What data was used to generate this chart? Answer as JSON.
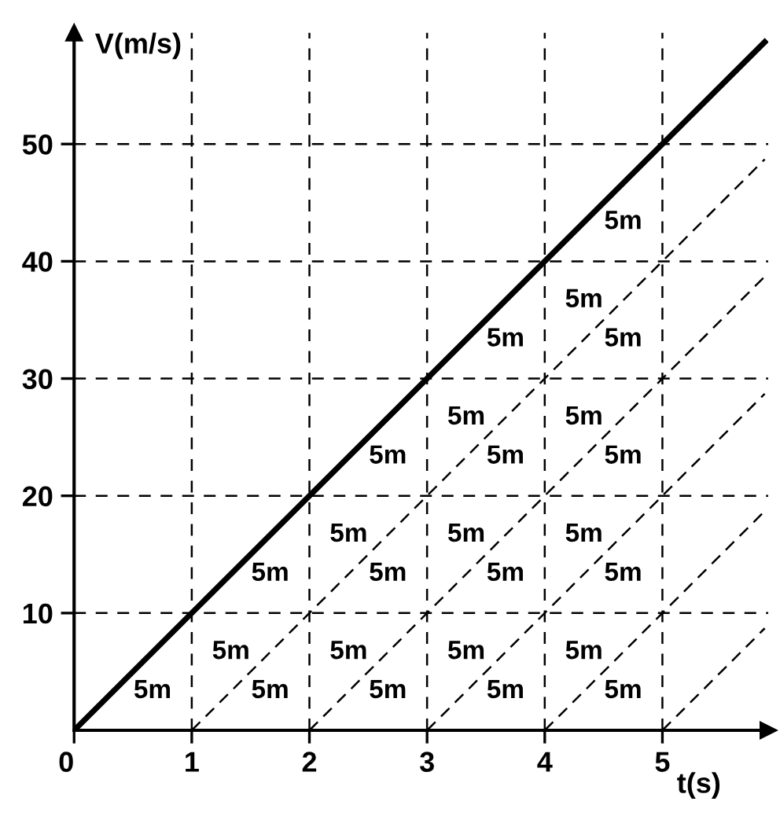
{
  "chart_data": {
    "type": "line",
    "xlabel": "t(s)",
    "ylabel": "V(m/s)",
    "xlim": [
      0,
      5.9
    ],
    "ylim": [
      0,
      59.5
    ],
    "xticks": [
      0,
      1,
      2,
      3,
      4,
      5
    ],
    "yticks": [
      10,
      20,
      30,
      40,
      50
    ],
    "grid": true,
    "marker": "none",
    "legend": false,
    "series": [
      {
        "x": [
          0,
          5.87
        ],
        "values": [
          0,
          58.7
        ],
        "color": "#000000",
        "line_style": "solid"
      },
      {
        "x": [
          1,
          5.87
        ],
        "values": [
          0,
          48.7
        ],
        "color": "#000000",
        "line_style": "dashed"
      },
      {
        "x": [
          2,
          5.87
        ],
        "values": [
          0,
          38.7
        ],
        "color": "#000000",
        "line_style": "dashed"
      },
      {
        "x": [
          3,
          5.87
        ],
        "values": [
          0,
          28.7
        ],
        "color": "#000000",
        "line_style": "dashed"
      },
      {
        "x": [
          4,
          5.87
        ],
        "values": [
          0,
          18.7
        ],
        "color": "#000000",
        "line_style": "dashed"
      },
      {
        "x": [
          5,
          5.87
        ],
        "values": [
          0,
          8.7
        ],
        "color": "#000000",
        "line_style": "dashed"
      }
    ],
    "annotations": [
      "5m",
      "5m",
      "5m",
      "5m",
      "5m",
      "5m",
      "5m",
      "5m",
      "5m",
      "5m",
      "5m",
      "5m",
      "5m",
      "5m",
      "5m",
      "5m",
      "5m",
      "5m",
      "5m",
      "5m",
      "5m",
      "5m",
      "5m",
      "5m",
      "5m"
    ]
  }
}
